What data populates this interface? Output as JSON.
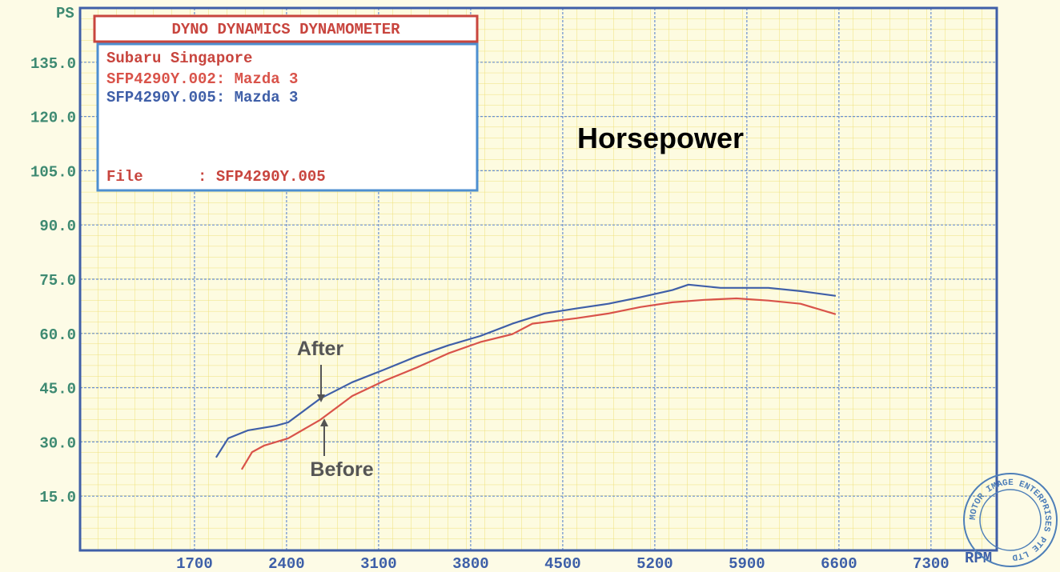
{
  "chart_data": {
    "type": "line",
    "title": "DYNO DYNAMICS DYNAMOMETER",
    "subtitle": "Subaru Singapore",
    "file_label": "File      : SFP4290Y.005",
    "y_label": "PS",
    "x_label": "RPM",
    "annotations": {
      "chart_label": "Horsepower",
      "after": "After",
      "before": "Before"
    },
    "stamp": "MOTOR IMAGE ENTERPRISES PTE LTD",
    "xlim": [
      830,
      7800
    ],
    "ylim": [
      0,
      150
    ],
    "xticks": [
      1700,
      2400,
      3100,
      3800,
      4500,
      5200,
      5900,
      6600,
      7300
    ],
    "yticks": [
      {
        "value": 15,
        "label": "15.0"
      },
      {
        "value": 30,
        "label": "30.0"
      },
      {
        "value": 45,
        "label": "45.0"
      },
      {
        "value": 60,
        "label": "60.0"
      },
      {
        "value": 75,
        "label": "75.0"
      },
      {
        "value": 90,
        "label": "90.0"
      },
      {
        "value": 105,
        "label": "105.0"
      },
      {
        "value": 120,
        "label": "120.0"
      },
      {
        "value": 135,
        "label": "135.0"
      }
    ],
    "grid": true,
    "series": [
      {
        "name": "SFP4290Y.002: Mazda 3",
        "color": "#d9534a",
        "x": [
          2059,
          2138,
          2230,
          2412,
          2656,
          2899,
          3143,
          3386,
          3630,
          3873,
          4117,
          4269,
          4604,
          4847,
          5090,
          5334,
          5577,
          5821,
          6064,
          6308,
          6576
        ],
        "values": [
          22.4,
          27.2,
          29,
          31,
          36.1,
          42.7,
          46.9,
          50.5,
          54.5,
          57.6,
          59.8,
          62.7,
          64.2,
          65.5,
          67.3,
          68.6,
          69.3,
          69.7,
          69.1,
          68.2,
          65.3
        ]
      },
      {
        "name": "SFP4290Y.005: Mazda 3",
        "color": "#3f5fa8",
        "x": [
          1864,
          1956,
          2108,
          2321,
          2412,
          2656,
          2899,
          3143,
          3386,
          3630,
          3873,
          4117,
          4360,
          4604,
          4847,
          5090,
          5334,
          5456,
          5699,
          6064,
          6308,
          6576
        ],
        "values": [
          25.7,
          31,
          33.2,
          34.5,
          35.4,
          42,
          46.5,
          50,
          53.6,
          56.7,
          59.3,
          62.7,
          65.5,
          66.9,
          68.2,
          70,
          72,
          73.5,
          72.6,
          72.6,
          71.7,
          70.4
        ]
      }
    ]
  }
}
